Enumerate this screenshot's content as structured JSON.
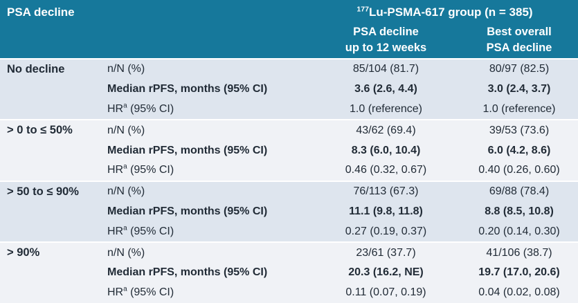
{
  "colors": {
    "header_bg": "#16789b",
    "header_text": "#ffffff",
    "group_bg_odd": "#dee5ee",
    "group_bg_even": "#f0f2f6",
    "text": "#212b36"
  },
  "header": {
    "psa_decline_label": "PSA decline",
    "group_title_sup": "177",
    "group_title": "Lu-PSMA-617 group (n = 385)",
    "col3_line1": "PSA decline",
    "col3_line2": "up to 12 weeks",
    "col4_line1": "Best overall",
    "col4_line2": "PSA decline"
  },
  "groups": [
    {
      "label": "No decline",
      "rows": [
        {
          "metric": "n/N (%)",
          "v1": "85/104 (81.7)",
          "v2": "80/97 (82.5)"
        },
        {
          "metric": "Median rPFS, months (95% CI)",
          "v1": "3.6 (2.6, 4.4)",
          "v2": "3.0 (2.4, 3.7)"
        },
        {
          "metric_pre": "HR",
          "metric_sup": "a",
          "metric_post": " (95% CI)",
          "v1": "1.0 (reference)",
          "v2": "1.0 (reference)"
        }
      ]
    },
    {
      "label": "> 0 to ≤ 50%",
      "rows": [
        {
          "metric": "n/N (%)",
          "v1": "43/62 (69.4)",
          "v2": "39/53 (73.6)"
        },
        {
          "metric": "Median rPFS, months (95% CI)",
          "v1": "8.3 (6.0, 10.4)",
          "v2": "6.0 (4.2, 8.6)"
        },
        {
          "metric_pre": "HR",
          "metric_sup": "a",
          "metric_post": " (95% CI)",
          "v1": "0.46 (0.32, 0.67)",
          "v2": "0.40 (0.26, 0.60)"
        }
      ]
    },
    {
      "label": "> 50 to ≤ 90%",
      "rows": [
        {
          "metric": "n/N (%)",
          "v1": "76/113 (67.3)",
          "v2": "69/88 (78.4)"
        },
        {
          "metric": "Median rPFS, months (95% CI)",
          "v1": "11.1 (9.8, 11.8)",
          "v2": "8.8 (8.5, 10.8)"
        },
        {
          "metric_pre": "HR",
          "metric_sup": "a",
          "metric_post": " (95% CI)",
          "v1": "0.27 (0.19, 0.37)",
          "v2": "0.20 (0.14, 0.30)"
        }
      ]
    },
    {
      "label": "> 90%",
      "rows": [
        {
          "metric": "n/N (%)",
          "v1": "23/61 (37.7)",
          "v2": "41/106 (38.7)"
        },
        {
          "metric": "Median rPFS, months (95% CI)",
          "v1": "20.3 (16.2, NE)",
          "v2": "19.7 (17.0, 20.6)"
        },
        {
          "metric_pre": "HR",
          "metric_sup": "a",
          "metric_post": " (95% CI)",
          "v1": "0.11 (0.07, 0.19)",
          "v2": "0.04 (0.02, 0.08)"
        }
      ]
    }
  ]
}
